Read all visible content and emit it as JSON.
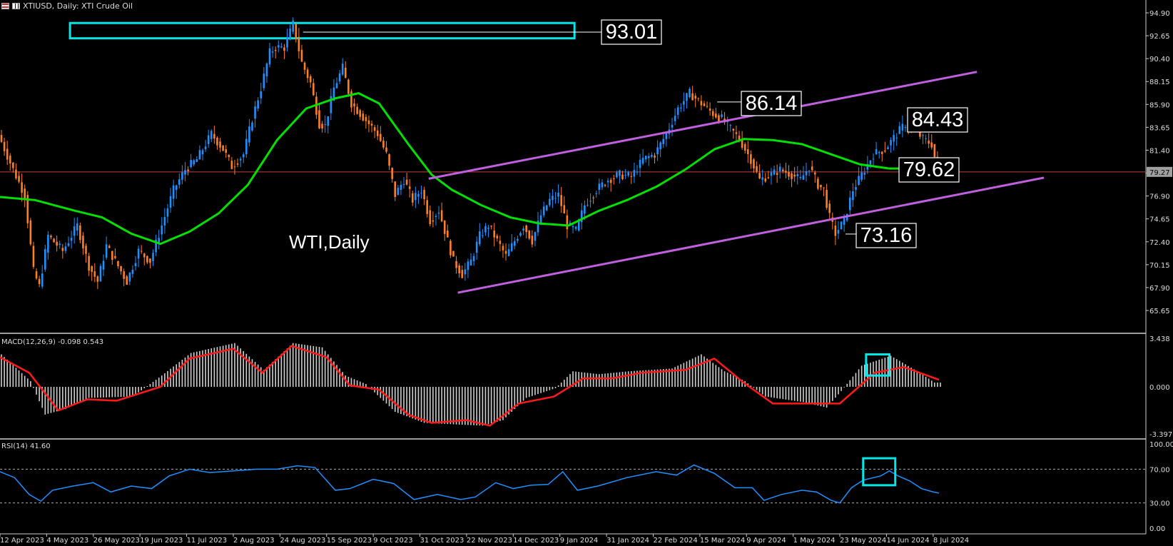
{
  "header": {
    "title": "XTIUSD, Daily:  XTI Crude Oil"
  },
  "colors": {
    "background": "#000000",
    "bull_candle": "#1e90ff",
    "bear_candle": "#ff7f27",
    "moving_average": "#00e000",
    "channel": "#c060e0",
    "annotation_box": "#00e5e5",
    "price_line": "#c04040",
    "macd_signal": "#ff1a1a",
    "macd_hist": "#d0d0d0",
    "rsi_line": "#1e90ff"
  },
  "chart_data": {
    "type": "candlestick",
    "symbol": "XTIUSD",
    "timeframe": "Daily",
    "instrument": "XTI Crude Oil",
    "overlay_label": "WTI,Daily",
    "current_price_label": "79.27",
    "price_axis_ticks": [
      "94.90",
      "92.65",
      "90.40",
      "88.15",
      "85.90",
      "83.65",
      "81.40",
      "79.15",
      "76.90",
      "74.65",
      "72.40",
      "70.15",
      "67.90",
      "65.65"
    ],
    "date_axis_ticks": [
      "12 Apr 2023",
      "4 May 2023",
      "26 May 2023",
      "19 Jun 2023",
      "11 Jul 2023",
      "2 Aug 2023",
      "24 Aug 2023",
      "15 Sep 2023",
      "9 Oct 2023",
      "31 Oct 2023",
      "22 Nov 2023",
      "14 Dec 2023",
      "9 Jan 2024",
      "31 Jan 2024",
      "22 Feb 2024",
      "15 Mar 2024",
      "9 Apr 2024",
      "1 May 2024",
      "23 May 2024",
      "14 Jun 2024",
      "8 Jul 2024"
    ],
    "price_path": [
      [
        0,
        82.9
      ],
      [
        5,
        79.5
      ],
      [
        9,
        77.0
      ],
      [
        12,
        69.5
      ],
      [
        14,
        68.0
      ],
      [
        17,
        73.0
      ],
      [
        22,
        71.5
      ],
      [
        27,
        74.0
      ],
      [
        31,
        70.0
      ],
      [
        34,
        68.5
      ],
      [
        37,
        72.0
      ],
      [
        40,
        70.5
      ],
      [
        44,
        68.5
      ],
      [
        48,
        71.5
      ],
      [
        52,
        70.5
      ],
      [
        56,
        74.0
      ],
      [
        60,
        77.5
      ],
      [
        64,
        79.5
      ],
      [
        68,
        80.5
      ],
      [
        73,
        83.0
      ],
      [
        77,
        81.5
      ],
      [
        80,
        79.8
      ],
      [
        84,
        81.0
      ],
      [
        87,
        84.5
      ],
      [
        90,
        87.5
      ],
      [
        93,
        91.0
      ],
      [
        95,
        91.5
      ],
      [
        98,
        91.5
      ],
      [
        101,
        93.8
      ],
      [
        104,
        90.0
      ],
      [
        107,
        88.0
      ],
      [
        110,
        84.0
      ],
      [
        112,
        83.8
      ],
      [
        115,
        87.5
      ],
      [
        118,
        89.5
      ],
      [
        121,
        86.0
      ],
      [
        124,
        85.0
      ],
      [
        127,
        84.0
      ],
      [
        130,
        83.0
      ],
      [
        133,
        81.0
      ],
      [
        136,
        77.0
      ],
      [
        139,
        78.5
      ],
      [
        142,
        76.5
      ],
      [
        145,
        77.5
      ],
      [
        148,
        74.5
      ],
      [
        151,
        75.5
      ],
      [
        153,
        73.5
      ],
      [
        156,
        70.5
      ],
      [
        159,
        69.2
      ],
      [
        162,
        70.5
      ],
      [
        165,
        73.0
      ],
      [
        168,
        74.0
      ],
      [
        171,
        72.5
      ],
      [
        174,
        71.0
      ],
      [
        177,
        72.5
      ],
      [
        180,
        74.0
      ],
      [
        183,
        72.5
      ],
      [
        186,
        75.0
      ],
      [
        189,
        76.5
      ],
      [
        192,
        77.0
      ],
      [
        195,
        74.0
      ],
      [
        198,
        73.5
      ],
      [
        201,
        76.0
      ],
      [
        205,
        77.5
      ],
      [
        209,
        78.5
      ],
      [
        213,
        79.0
      ],
      [
        217,
        78.8
      ],
      [
        221,
        80.5
      ],
      [
        225,
        81.0
      ],
      [
        229,
        83.0
      ],
      [
        233,
        85.5
      ],
      [
        237,
        87.0
      ],
      [
        241,
        86.0
      ],
      [
        245,
        85.0
      ],
      [
        248,
        84.5
      ],
      [
        251,
        83.5
      ],
      [
        254,
        82.5
      ],
      [
        258,
        80.5
      ],
      [
        261,
        78.5
      ],
      [
        265,
        79.0
      ],
      [
        268,
        79.5
      ],
      [
        272,
        79.0
      ],
      [
        275,
        78.5
      ],
      [
        278,
        79.8
      ],
      [
        281,
        78.0
      ],
      [
        283,
        77.5
      ],
      [
        285,
        74.8
      ],
      [
        287,
        73.2
      ],
      [
        290,
        74.5
      ],
      [
        293,
        77.5
      ],
      [
        297,
        79.5
      ],
      [
        300,
        81.0
      ],
      [
        304,
        81.5
      ],
      [
        308,
        83.0
      ],
      [
        311,
        84.0
      ],
      [
        314,
        83.5
      ],
      [
        317,
        82.5
      ],
      [
        320,
        82.0
      ],
      [
        322,
        79.5
      ]
    ],
    "moving_average": [
      [
        0,
        76.8
      ],
      [
        12,
        76.5
      ],
      [
        25,
        75.5
      ],
      [
        35,
        74.8
      ],
      [
        45,
        73.2
      ],
      [
        55,
        72.2
      ],
      [
        65,
        73.4
      ],
      [
        75,
        75.2
      ],
      [
        85,
        78.0
      ],
      [
        95,
        82.4
      ],
      [
        105,
        85.5
      ],
      [
        115,
        86.5
      ],
      [
        123,
        87.0
      ],
      [
        130,
        86.0
      ],
      [
        140,
        82.0
      ],
      [
        148,
        79.0
      ],
      [
        155,
        77.5
      ],
      [
        165,
        76.0
      ],
      [
        175,
        74.8
      ],
      [
        185,
        74.2
      ],
      [
        195,
        74.0
      ],
      [
        205,
        75.4
      ],
      [
        215,
        76.5
      ],
      [
        225,
        77.8
      ],
      [
        235,
        79.5
      ],
      [
        245,
        81.5
      ],
      [
        255,
        82.5
      ],
      [
        265,
        82.4
      ],
      [
        275,
        82.0
      ],
      [
        285,
        81.0
      ],
      [
        295,
        80.0
      ],
      [
        305,
        79.6
      ],
      [
        315,
        79.6
      ],
      [
        322,
        79.8
      ]
    ],
    "channel_upper": [
      [
        147,
        78.6
      ],
      [
        335,
        89.1
      ]
    ],
    "channel_lower": [
      [
        157,
        67.4
      ],
      [
        358,
        78.7
      ]
    ],
    "levels": [
      {
        "label": "93.01",
        "index": 101,
        "value": 93.01
      },
      {
        "label": "86.14",
        "index": 243,
        "value": 86.14
      },
      {
        "label": "84.43",
        "index": 310,
        "value": 84.43
      },
      {
        "label": "79.62",
        "index": 318,
        "value": 79.62
      },
      {
        "label": "73.16",
        "index": 287,
        "value": 73.16
      }
    ],
    "resistance_zone": {
      "x_start": 24,
      "x_end": 197,
      "y_low": 92.4,
      "y_high": 93.9
    },
    "macd": {
      "label": "MACD(12,26,9) -0.098 0.543",
      "axis_ticks": [
        "3.438",
        "0.000",
        "-3.397"
      ],
      "histogram": [
        [
          0,
          2.3
        ],
        [
          10,
          0.4
        ],
        [
          15,
          -2.0
        ],
        [
          22,
          -1.6
        ],
        [
          30,
          -0.8
        ],
        [
          45,
          -0.7
        ],
        [
          55,
          0.8
        ],
        [
          65,
          2.4
        ],
        [
          80,
          3.1
        ],
        [
          90,
          1.2
        ],
        [
          100,
          3.1
        ],
        [
          110,
          2.8
        ],
        [
          118,
          0.8
        ],
        [
          125,
          0.2
        ],
        [
          135,
          -1.8
        ],
        [
          145,
          -2.6
        ],
        [
          155,
          -2.7
        ],
        [
          165,
          -2.8
        ],
        [
          172,
          -2.4
        ],
        [
          180,
          -0.8
        ],
        [
          190,
          -0.1
        ],
        [
          196,
          1.1
        ],
        [
          205,
          0.9
        ],
        [
          215,
          1.1
        ],
        [
          230,
          1.3
        ],
        [
          240,
          2.3
        ],
        [
          248,
          1.1
        ],
        [
          255,
          0.4
        ],
        [
          262,
          -0.7
        ],
        [
          275,
          -1.1
        ],
        [
          283,
          -1.5
        ],
        [
          288,
          -0.3
        ],
        [
          295,
          1.5
        ],
        [
          305,
          2.2
        ],
        [
          315,
          1.0
        ],
        [
          320,
          0.3
        ]
      ],
      "signal": [
        [
          0,
          2.1
        ],
        [
          10,
          1.0
        ],
        [
          20,
          -1.7
        ],
        [
          30,
          -0.9
        ],
        [
          40,
          -1.0
        ],
        [
          55,
          0.0
        ],
        [
          65,
          2.0
        ],
        [
          80,
          2.7
        ],
        [
          90,
          1.0
        ],
        [
          100,
          2.9
        ],
        [
          112,
          2.1
        ],
        [
          120,
          0.1
        ],
        [
          130,
          -0.2
        ],
        [
          140,
          -2.0
        ],
        [
          148,
          -2.6
        ],
        [
          160,
          -2.4
        ],
        [
          168,
          -2.8
        ],
        [
          178,
          -1.2
        ],
        [
          190,
          -0.7
        ],
        [
          200,
          0.6
        ],
        [
          210,
          0.6
        ],
        [
          220,
          1.0
        ],
        [
          235,
          1.2
        ],
        [
          245,
          2.0
        ],
        [
          255,
          0.3
        ],
        [
          265,
          -1.2
        ],
        [
          280,
          -1.2
        ],
        [
          288,
          -1.2
        ],
        [
          300,
          1.0
        ],
        [
          310,
          1.4
        ],
        [
          322,
          0.5
        ]
      ],
      "highlight": {
        "x_start": 297,
        "x_end": 305,
        "y_low": 0.8,
        "y_high": 2.3
      }
    },
    "rsi": {
      "label": "RSI(14) 41.60",
      "axis_ticks": [
        "100.00",
        "70.00",
        "30.00",
        "0.00"
      ],
      "levels": [
        70,
        30
      ],
      "values": [
        [
          0,
          67
        ],
        [
          5,
          60
        ],
        [
          10,
          40
        ],
        [
          14,
          32
        ],
        [
          18,
          45
        ],
        [
          25,
          50
        ],
        [
          32,
          54
        ],
        [
          38,
          43
        ],
        [
          45,
          50
        ],
        [
          52,
          47
        ],
        [
          58,
          62
        ],
        [
          65,
          70
        ],
        [
          72,
          66
        ],
        [
          80,
          68
        ],
        [
          88,
          70
        ],
        [
          95,
          70
        ],
        [
          102,
          74
        ],
        [
          108,
          72
        ],
        [
          115,
          45
        ],
        [
          120,
          47
        ],
        [
          128,
          58
        ],
        [
          135,
          53
        ],
        [
          142,
          34
        ],
        [
          150,
          40
        ],
        [
          158,
          34
        ],
        [
          163,
          37
        ],
        [
          170,
          54
        ],
        [
          176,
          47
        ],
        [
          182,
          51
        ],
        [
          188,
          52
        ],
        [
          193,
          67
        ],
        [
          198,
          45
        ],
        [
          205,
          50
        ],
        [
          215,
          60
        ],
        [
          225,
          67
        ],
        [
          232,
          63
        ],
        [
          238,
          75
        ],
        [
          245,
          65
        ],
        [
          252,
          48
        ],
        [
          258,
          48
        ],
        [
          262,
          33
        ],
        [
          268,
          40
        ],
        [
          275,
          45
        ],
        [
          280,
          43
        ],
        [
          285,
          33
        ],
        [
          288,
          30
        ],
        [
          292,
          48
        ],
        [
          296,
          57
        ],
        [
          302,
          62
        ],
        [
          305,
          68
        ],
        [
          308,
          62
        ],
        [
          312,
          56
        ],
        [
          316,
          47
        ],
        [
          320,
          43
        ],
        [
          322,
          41.6
        ]
      ],
      "highlight": {
        "x_start": 296,
        "x_end": 307,
        "y_low": 51,
        "y_high": 83
      }
    },
    "grid": false,
    "legend": "none"
  }
}
